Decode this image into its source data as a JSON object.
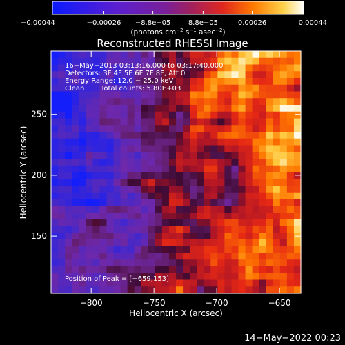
{
  "chart_data": {
    "type": "heatmap",
    "title": "Reconstructed RHESSI Image",
    "xlabel": "Heliocentric X (arcsec)",
    "ylabel": "Heliocentric Y (arcsec)",
    "xlim": [
      -832,
      -633
    ],
    "ylim": [
      103,
      302
    ],
    "x_ticks": [
      -800,
      -750,
      -700,
      -650
    ],
    "y_ticks": [
      150,
      200,
      250
    ],
    "x_tick_labels": [
      "−800",
      "−750",
      "−700",
      "−650"
    ],
    "y_tick_labels": [
      "150",
      "200",
      "250"
    ],
    "colorbar": {
      "range": [
        -0.00044,
        0.00044
      ],
      "ticks": [
        -0.00044,
        -0.00026,
        -8.8e-05,
        8.8e-05,
        0.00026,
        0.00044
      ],
      "tick_labels": [
        "−0.00044",
        "−0.00026",
        "−8.8e−05",
        "8.8e−05",
        "0.00026",
        "0.00044"
      ],
      "unit_label_main": "(photons cm",
      "unit_label_exp1": "−2",
      "unit_label_mid1": " s",
      "unit_label_exp2": "−1",
      "unit_label_mid2": " asec",
      "unit_label_exp3": "−2",
      "unit_label_end": ")",
      "colors": [
        "#0a1aff",
        "#3b1fd9",
        "#6a1fb4",
        "#8a1f8a",
        "#b3204f",
        "#e0281e",
        "#ff5a00",
        "#ff9a00",
        "#ffd24a",
        "#ffffff"
      ]
    },
    "annotations": [
      "16−May−2013 03:13:16.000 to 03:17:40.000",
      "Detectors: 3F 4F 5F 6F 7F 8F, Att 0",
      "Energy Range: 12.0 − 25.0 keV",
      "Clean",
      "Total counts: 5.80E+03"
    ],
    "peak_label": "Position of Peak = [−659,153]",
    "grid": false
  },
  "footer": {
    "date": "14−May−2022 00:23"
  }
}
